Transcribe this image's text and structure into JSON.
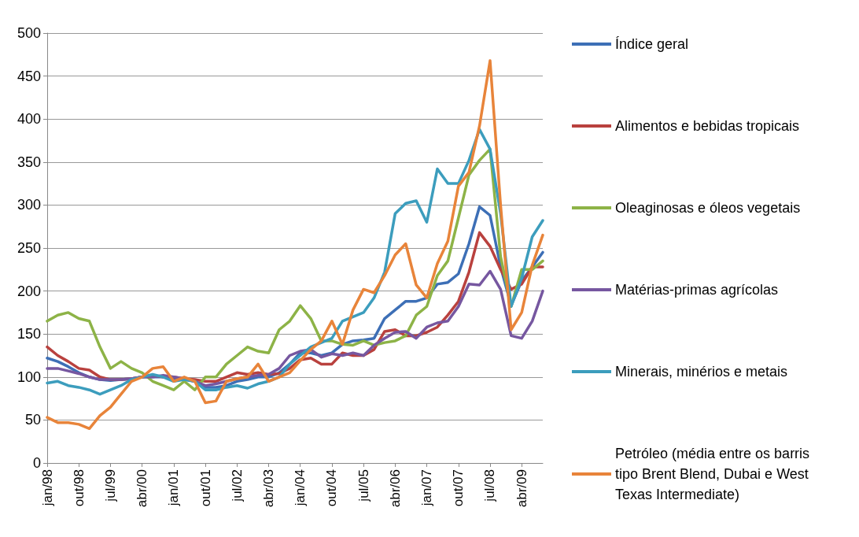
{
  "chart_data": {
    "type": "line",
    "categories": [
      "jan/98",
      null,
      null,
      "out/98",
      null,
      null,
      "jul/99",
      null,
      null,
      "abr/00",
      null,
      null,
      "jan/01",
      null,
      null,
      "out/01",
      null,
      null,
      "jul/02",
      null,
      null,
      "abr/03",
      null,
      null,
      "jan/04",
      null,
      null,
      "out/04",
      null,
      null,
      "jul/05",
      null,
      null,
      "abr/06",
      null,
      null,
      "jan/07",
      null,
      null,
      "out/07",
      null,
      null,
      "jul/08",
      null,
      null,
      "abr/09",
      null,
      null
    ],
    "series": [
      {
        "name": "Índice geral",
        "color": "#3d6fb6",
        "values": [
          122,
          118,
          112,
          105,
          100,
          97,
          96,
          97,
          98,
          100,
          100,
          100,
          98,
          97,
          95,
          88,
          88,
          90,
          95,
          97,
          100,
          100,
          105,
          115,
          128,
          128,
          125,
          128,
          138,
          142,
          143,
          145,
          168,
          178,
          188,
          188,
          192,
          208,
          210,
          220,
          255,
          298,
          288,
          228,
          183,
          212,
          228,
          245
        ]
      },
      {
        "name": "Alimentos e bebidas tropicais",
        "color": "#b9413e",
        "values": [
          135,
          125,
          118,
          110,
          108,
          100,
          97,
          97,
          98,
          100,
          102,
          100,
          100,
          98,
          97,
          95,
          95,
          100,
          105,
          103,
          105,
          103,
          104,
          110,
          120,
          122,
          115,
          115,
          128,
          125,
          125,
          132,
          153,
          155,
          148,
          148,
          152,
          158,
          172,
          188,
          222,
          268,
          252,
          225,
          202,
          208,
          228,
          228
        ]
      },
      {
        "name": "Oleaginosas e óleos vegetais",
        "color": "#8db347",
        "values": [
          165,
          172,
          175,
          168,
          165,
          135,
          110,
          118,
          110,
          105,
          95,
          90,
          85,
          95,
          85,
          100,
          100,
          115,
          125,
          135,
          130,
          128,
          155,
          165,
          183,
          168,
          142,
          142,
          138,
          137,
          142,
          137,
          140,
          142,
          148,
          172,
          182,
          218,
          235,
          285,
          335,
          352,
          365,
          240,
          182,
          225,
          225,
          235
        ]
      },
      {
        "name": "Matérias-primas agrícolas",
        "color": "#7657a0",
        "values": [
          110,
          110,
          107,
          104,
          100,
          97,
          97,
          97,
          98,
          100,
          100,
          102,
          100,
          98,
          95,
          90,
          92,
          95,
          98,
          100,
          102,
          103,
          110,
          125,
          130,
          132,
          123,
          127,
          125,
          128,
          125,
          137,
          145,
          152,
          153,
          145,
          158,
          163,
          165,
          182,
          208,
          207,
          223,
          202,
          148,
          145,
          165,
          200
        ]
      },
      {
        "name": "Minerais, minérios e metais",
        "color": "#3c9dbd",
        "values": [
          93,
          95,
          90,
          88,
          85,
          80,
          85,
          90,
          97,
          100,
          103,
          100,
          95,
          97,
          95,
          85,
          85,
          88,
          90,
          87,
          92,
          95,
          100,
          115,
          125,
          135,
          140,
          145,
          165,
          170,
          175,
          192,
          222,
          290,
          302,
          305,
          280,
          342,
          325,
          325,
          352,
          388,
          365,
          290,
          182,
          215,
          263,
          282
        ]
      },
      {
        "name": "Petróleo (média entre os barris tipo Brent Blend, Dubai e West Texas Intermediate)",
        "color": "#e8843a",
        "values": [
          53,
          47,
          47,
          45,
          40,
          55,
          65,
          80,
          95,
          100,
          110,
          112,
          95,
          100,
          95,
          70,
          72,
          95,
          98,
          100,
          115,
          95,
          100,
          105,
          119,
          132,
          142,
          165,
          138,
          178,
          202,
          198,
          218,
          242,
          255,
          207,
          192,
          232,
          258,
          322,
          338,
          392,
          468,
          300,
          155,
          175,
          230,
          265
        ]
      }
    ],
    "ylim": [
      0,
      500
    ],
    "yticks": [
      0,
      50,
      100,
      150,
      200,
      250,
      300,
      350,
      400,
      450,
      500
    ],
    "grid": "y",
    "legend": "right",
    "marker": "none",
    "line_style": "solid"
  }
}
